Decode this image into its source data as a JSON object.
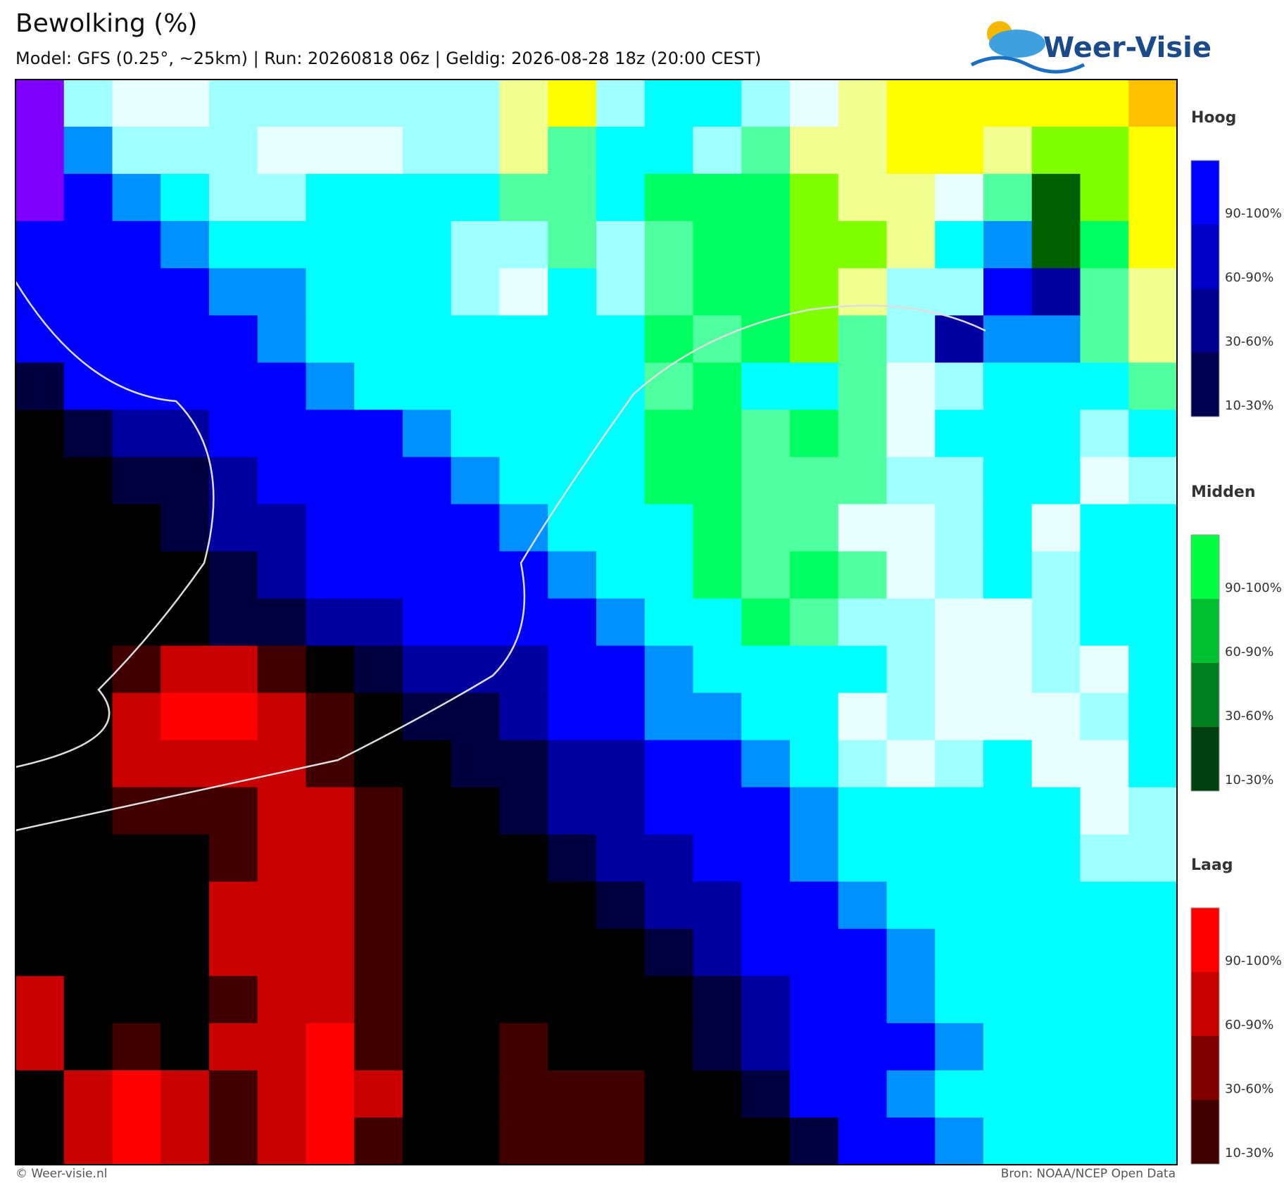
{
  "header": {
    "title": "Bewolking (%)",
    "subtitle": "Model: GFS (0.25°, ~25km)  |  Run: 20260818 06z  |  Geldig: 2026-08-28 18z (20:00 CEST)"
  },
  "logo": {
    "text": "Weer-Visie"
  },
  "legend": [
    {
      "title": "Hoog",
      "items": [
        "90-100%",
        "60-90%",
        "30-60%",
        "10-30%"
      ],
      "colors": [
        "#0000ff",
        "#0000c8",
        "#000090",
        "#000050"
      ]
    },
    {
      "title": "Midden",
      "items": [
        "90-100%",
        "60-90%",
        "30-60%",
        "10-30%"
      ],
      "colors": [
        "#00ff40",
        "#00c030",
        "#008020",
        "#004010"
      ]
    },
    {
      "title": "Laag",
      "items": [
        "90-100%",
        "60-90%",
        "30-60%",
        "10-30%"
      ],
      "colors": [
        "#ff0000",
        "#c80000",
        "#800000",
        "#400000"
      ]
    }
  ],
  "footer": {
    "left": "© Weer-visie.nl",
    "right": "Bron: NOAA/NCEP Open Data"
  }
}
